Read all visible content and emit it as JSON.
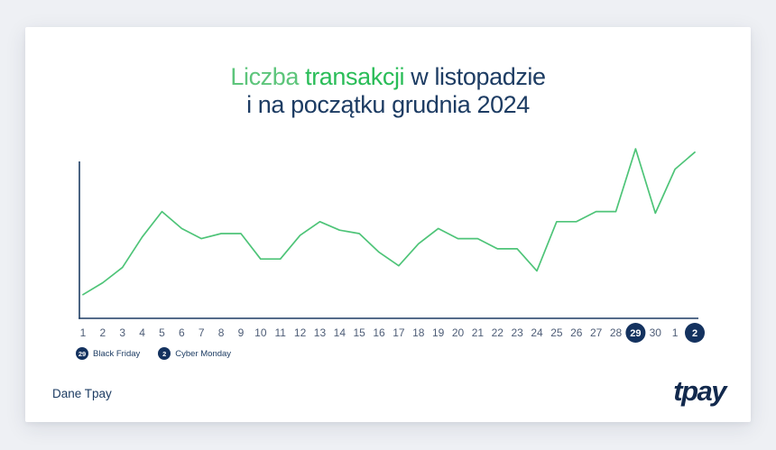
{
  "page": {
    "background_color": "#eef0f4",
    "card_color": "#ffffff"
  },
  "title": {
    "segments": [
      {
        "text": "Liczba ",
        "color": "#5dc57b"
      },
      {
        "text": "transakcji",
        "color": "#2abd58"
      },
      {
        "text": " w listopadzie",
        "color": "#1d3c63"
      }
    ],
    "line2": "i na początku grudnia 2024",
    "line2_color": "#1d3c63"
  },
  "chart_data": {
    "type": "line",
    "title": "Liczba transakcji w listopadzie i na początku grudnia 2024",
    "x_labels": [
      "1",
      "2",
      "3",
      "4",
      "5",
      "6",
      "7",
      "8",
      "9",
      "10",
      "11",
      "12",
      "13",
      "14",
      "15",
      "16",
      "17",
      "18",
      "19",
      "20",
      "21",
      "22",
      "23",
      "24",
      "25",
      "26",
      "27",
      "28",
      "29",
      "30",
      "1",
      "2"
    ],
    "series": [
      {
        "name": "Liczba transakcji",
        "values": [
          14,
          21,
          30,
          48,
          63,
          53,
          47,
          50,
          50,
          35,
          35,
          49,
          57,
          52,
          50,
          39,
          31,
          44,
          53,
          47,
          47,
          41,
          41,
          28,
          57,
          57,
          63,
          63,
          100,
          62,
          88,
          98
        ]
      }
    ],
    "ylim": [
      0,
      105
    ],
    "grid": false,
    "y_tick_labels": [],
    "legend_position": "bottom-left",
    "line_color": "#4ec478",
    "axis_color": "#1d3c63",
    "label_color": "#4e5d77",
    "highlighted_points": [
      {
        "index": 28,
        "label": "29",
        "circle_color": "#14325f",
        "text_color": "#ffffff"
      },
      {
        "index": 31,
        "label": "2",
        "circle_color": "#14325f",
        "text_color": "#ffffff"
      }
    ]
  },
  "legend": {
    "items": [
      {
        "marker": "29",
        "label": "Black Friday"
      },
      {
        "marker": "2",
        "label": "Cyber Monday"
      }
    ],
    "marker_color": "#14325f",
    "label_color": "#1d3c63"
  },
  "footer": {
    "source": "Dane Tpay",
    "source_color": "#1d3c63",
    "logo": "tpay",
    "logo_color": "#12294d"
  }
}
